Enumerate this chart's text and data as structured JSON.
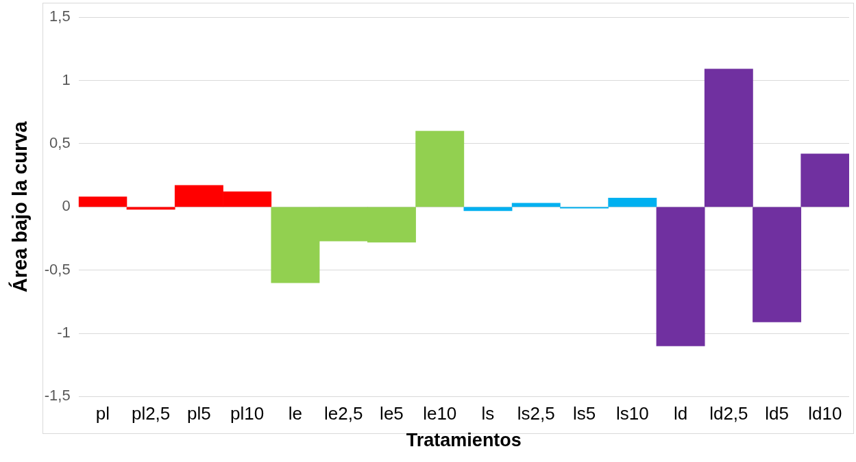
{
  "chart_data": {
    "type": "bar",
    "xlabel": "Tratamientos",
    "ylabel": "Área bajo la curva",
    "categories": [
      "pl",
      "pl2,5",
      "pl5",
      "pl10",
      "le",
      "le2,5",
      "le5",
      "le10",
      "ls",
      "ls2,5",
      "ls5",
      "ls10",
      "ld",
      "ld2,5",
      "ld5",
      "ld10"
    ],
    "values": [
      0.08,
      -0.02,
      0.17,
      0.12,
      -0.6,
      -0.27,
      -0.28,
      0.6,
      -0.03,
      0.03,
      -0.01,
      0.07,
      -1.1,
      1.09,
      -0.91,
      0.42
    ],
    "colors": [
      "#ff0000",
      "#ff0000",
      "#ff0000",
      "#ff0000",
      "#92d050",
      "#92d050",
      "#92d050",
      "#92d050",
      "#00b0f0",
      "#00b0f0",
      "#00b0f0",
      "#00b0f0",
      "#7030a0",
      "#7030a0",
      "#7030a0",
      "#7030a0"
    ],
    "ylim": [
      -1.5,
      1.5
    ],
    "yticks": [
      {
        "value": -1.5,
        "label": "-1,5"
      },
      -1,
      {
        "value": -0.5,
        "label": "-0,5"
      },
      0,
      {
        "value": 0.5,
        "label": "0,5"
      },
      1,
      {
        "value": 1.5,
        "label": "1,5"
      }
    ],
    "grid": "y",
    "legend": false
  }
}
